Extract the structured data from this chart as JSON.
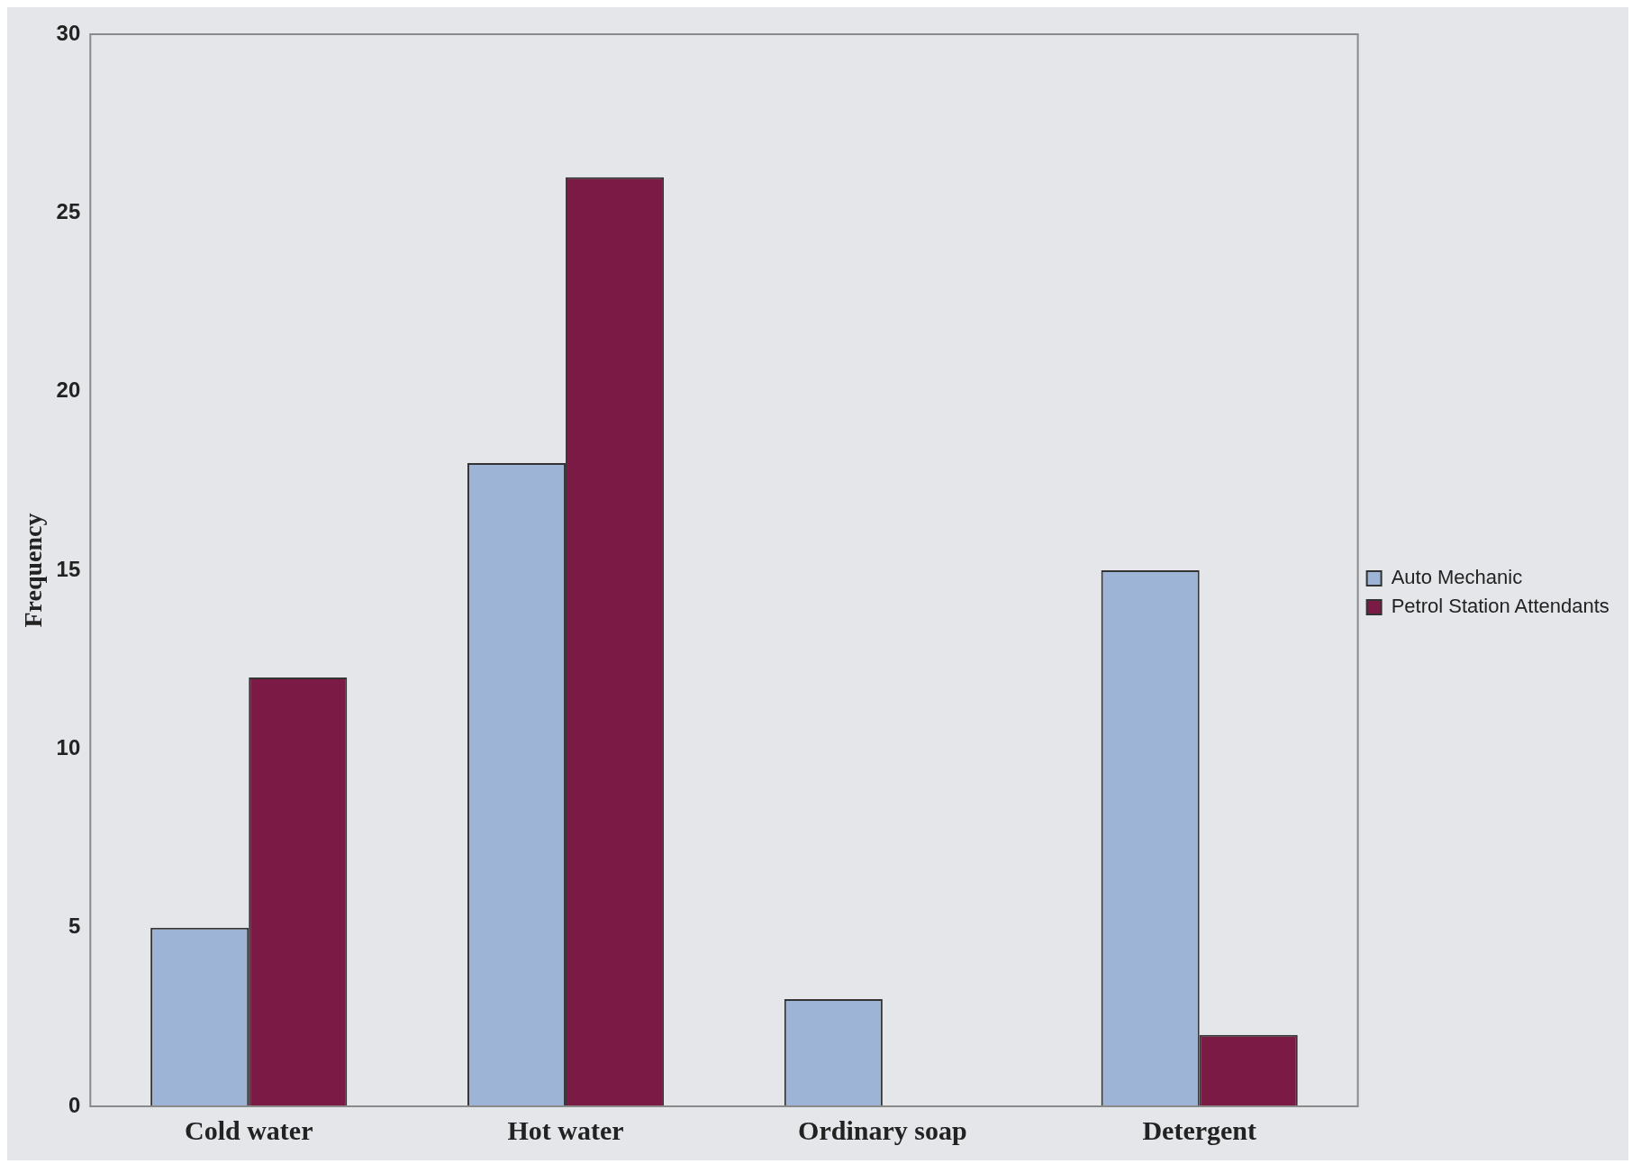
{
  "chart_data": {
    "type": "bar",
    "ylabel": "Frequency",
    "categories": [
      "Cold water",
      "Hot water",
      "Ordinary soap",
      "Detergent"
    ],
    "series": [
      {
        "name": "Auto Mechanic",
        "color": "#9db4d6",
        "values": [
          5,
          18,
          3,
          15
        ]
      },
      {
        "name": "Petrol Station Attendants",
        "color": "#7a1a45",
        "values": [
          12,
          26,
          0,
          2
        ]
      }
    ],
    "ylim": [
      0,
      30
    ],
    "yticks": [
      0,
      5,
      10,
      15,
      20,
      25,
      30
    ],
    "grid": false,
    "legend": "right"
  }
}
